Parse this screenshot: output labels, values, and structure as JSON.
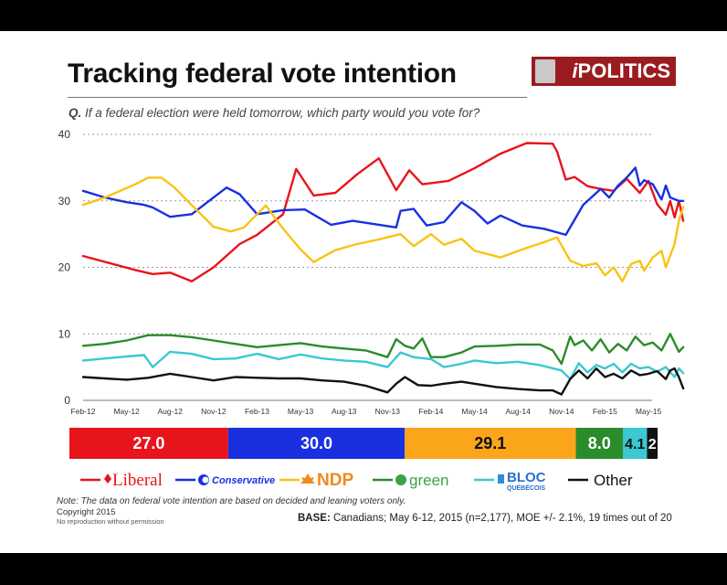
{
  "title": "Tracking federal vote intention",
  "logo": {
    "prefix": "i",
    "text": "POLITICS"
  },
  "question": {
    "label": "Q.",
    "text": "If a federal election were held tomorrow, which party would you vote for?"
  },
  "note": "Note: The data on federal vote intention are based on decided and leaning voters only.",
  "copyright": "Copyright 2015",
  "no_reproduction": "No reproduction without permission",
  "base": {
    "label": "BASE:",
    "text": "Canadians; May 6-12, 2015 (n=2,177), MOE +/- 2.1%, 19 times out of 20"
  },
  "colors": {
    "liberal": "#e8141b",
    "conservative": "#1a2fe0",
    "ndp": "#f9c312",
    "green": "#2a8c2a",
    "bloc": "#3ac8d2",
    "other": "#111111",
    "bar_ndp": "#fba61a"
  },
  "chart_data": {
    "type": "line",
    "x_labels": [
      "Feb-12",
      "May-12",
      "Aug-12",
      "Nov-12",
      "Feb-13",
      "May-13",
      "Aug-13",
      "Nov-13",
      "Feb-14",
      "May-14",
      "Aug-14",
      "Nov-14",
      "Feb-15",
      "May-15"
    ],
    "ylim": [
      0,
      40
    ],
    "yticks": [
      0,
      10,
      20,
      30,
      40
    ],
    "grid": true,
    "legend_position": "bottom",
    "series": [
      {
        "name": "Liberal",
        "key": "liberal",
        "x": [
          0,
          1.2,
          1.6,
          2.0,
          2.5,
          3.0,
          3.6,
          4.0,
          4.6,
          4.9,
          5.3,
          5.8,
          6.3,
          6.8,
          7.2,
          7.5,
          7.8,
          8.4,
          9.0,
          9.6,
          10.2,
          10.8,
          10.9,
          11.1,
          11.3,
          11.6,
          11.9,
          12.2,
          12.5,
          12.8,
          13.0,
          13.2,
          13.4,
          13.5,
          13.6,
          13.7,
          13.8
        ],
        "y": [
          21.7,
          19.6,
          19.0,
          19.2,
          17.9,
          20.0,
          23.5,
          24.9,
          28.0,
          34.8,
          30.8,
          31.2,
          34.0,
          36.4,
          31.6,
          34.6,
          32.5,
          33.0,
          34.9,
          37.1,
          38.7,
          38.6,
          37.4,
          33.2,
          33.6,
          32.2,
          31.8,
          31.5,
          33.3,
          31.2,
          33.0,
          29.5,
          27.9,
          30.0,
          27.5,
          30.0,
          27.0
        ]
      },
      {
        "name": "Conservative",
        "key": "conservative",
        "x": [
          0,
          0.5,
          1.0,
          1.4,
          1.6,
          2.0,
          2.5,
          3.0,
          3.3,
          3.6,
          4.0,
          4.6,
          5.1,
          5.7,
          6.2,
          6.7,
          7.2,
          7.3,
          7.6,
          7.9,
          8.3,
          8.7,
          9.0,
          9.3,
          9.6,
          10.1,
          10.6,
          11.1,
          11.5,
          11.9,
          12.1,
          12.3,
          12.5,
          12.7,
          12.8,
          12.9,
          13.1,
          13.3,
          13.4,
          13.5,
          13.7,
          13.8
        ],
        "y": [
          31.5,
          30.5,
          29.8,
          29.4,
          29.0,
          27.6,
          28.0,
          30.5,
          32.0,
          31.0,
          28.0,
          28.6,
          28.7,
          26.4,
          27.0,
          26.5,
          26.0,
          28.5,
          28.8,
          26.3,
          26.8,
          29.8,
          28.5,
          26.6,
          27.8,
          26.3,
          25.8,
          24.9,
          29.4,
          31.8,
          30.5,
          32.3,
          33.5,
          35.0,
          32.3,
          33.1,
          32.5,
          30.2,
          32.3,
          30.5,
          30.0,
          30.0
        ]
      },
      {
        "name": "NDP",
        "key": "ndp",
        "x": [
          0,
          0.5,
          1.2,
          1.5,
          1.8,
          2.1,
          2.4,
          3.0,
          3.4,
          3.7,
          4.2,
          4.6,
          5.0,
          5.3,
          5.8,
          6.3,
          6.8,
          7.3,
          7.6,
          8.0,
          8.3,
          8.7,
          9.0,
          9.6,
          10.1,
          10.6,
          10.9,
          11.2,
          11.5,
          11.8,
          12.0,
          12.2,
          12.4,
          12.6,
          12.8,
          12.9,
          13.1,
          13.3,
          13.4,
          13.6,
          13.7,
          13.8
        ],
        "y": [
          29.4,
          30.5,
          32.5,
          33.5,
          33.5,
          32.0,
          30.0,
          26.1,
          25.4,
          26.0,
          29.3,
          25.8,
          22.7,
          20.8,
          22.6,
          23.5,
          24.2,
          25.0,
          23.2,
          25.0,
          23.4,
          24.3,
          22.5,
          21.5,
          22.7,
          23.8,
          24.5,
          21.0,
          20.2,
          20.6,
          18.8,
          20.0,
          17.9,
          20.5,
          21.0,
          19.5,
          21.5,
          22.5,
          20.0,
          23.5,
          27.0,
          29.1
        ]
      },
      {
        "name": "Green",
        "key": "green",
        "x": [
          0,
          0.5,
          1.0,
          1.5,
          2.0,
          2.5,
          3.0,
          3.5,
          4.0,
          4.5,
          5.0,
          5.5,
          6.0,
          6.5,
          7.0,
          7.2,
          7.4,
          7.6,
          7.8,
          8.0,
          8.3,
          8.7,
          9.0,
          9.5,
          10.0,
          10.5,
          10.8,
          11.0,
          11.2,
          11.3,
          11.5,
          11.7,
          11.9,
          12.1,
          12.3,
          12.5,
          12.7,
          12.9,
          13.1,
          13.3,
          13.5,
          13.7,
          13.8
        ],
        "y": [
          8.2,
          8.5,
          9.0,
          9.8,
          9.8,
          9.5,
          9.0,
          8.5,
          8.0,
          8.3,
          8.6,
          8.1,
          7.8,
          7.5,
          6.5,
          9.2,
          8.2,
          7.8,
          9.3,
          6.5,
          6.5,
          7.2,
          8.1,
          8.2,
          8.4,
          8.4,
          7.5,
          5.5,
          9.6,
          8.3,
          9.0,
          7.5,
          9.2,
          7.2,
          8.5,
          7.5,
          9.6,
          8.3,
          8.7,
          7.5,
          10.0,
          7.3,
          8.0
        ]
      },
      {
        "name": "Bloc",
        "key": "bloc",
        "x": [
          0,
          0.5,
          1.0,
          1.4,
          1.6,
          2.0,
          2.5,
          3.0,
          3.5,
          4.0,
          4.5,
          5.0,
          5.5,
          6.0,
          6.5,
          7.0,
          7.3,
          7.6,
          8.0,
          8.3,
          8.7,
          9.0,
          9.5,
          10.0,
          10.5,
          11.0,
          11.2,
          11.4,
          11.6,
          11.8,
          12.0,
          12.2,
          12.4,
          12.6,
          12.8,
          13.0,
          13.2,
          13.4,
          13.6,
          13.7,
          13.8
        ],
        "y": [
          6.0,
          6.3,
          6.6,
          6.8,
          5.0,
          7.3,
          7.0,
          6.2,
          6.3,
          7.0,
          6.2,
          6.9,
          6.3,
          6.0,
          5.8,
          5.0,
          7.2,
          6.5,
          6.2,
          5.0,
          5.5,
          6.0,
          5.6,
          5.8,
          5.3,
          4.5,
          3.2,
          5.6,
          4.2,
          5.3,
          4.8,
          5.5,
          4.2,
          5.5,
          4.8,
          5.0,
          4.3,
          5.0,
          3.5,
          4.8,
          4.1
        ]
      },
      {
        "name": "Other",
        "key": "other",
        "x": [
          0,
          0.5,
          1.0,
          1.5,
          2.0,
          2.5,
          3.0,
          3.5,
          4.0,
          4.5,
          5.0,
          5.5,
          6.0,
          6.5,
          7.0,
          7.2,
          7.4,
          7.7,
          8.0,
          8.3,
          8.7,
          9.0,
          9.5,
          10.0,
          10.5,
          10.8,
          11.0,
          11.2,
          11.4,
          11.6,
          11.8,
          12.0,
          12.2,
          12.4,
          12.6,
          12.8,
          13.0,
          13.2,
          13.4,
          13.5,
          13.6,
          13.7,
          13.8
        ],
        "y": [
          3.5,
          3.3,
          3.1,
          3.4,
          4.0,
          3.5,
          3.0,
          3.5,
          3.4,
          3.3,
          3.3,
          3.0,
          2.8,
          2.2,
          1.2,
          2.5,
          3.5,
          2.3,
          2.2,
          2.5,
          2.8,
          2.5,
          2.0,
          1.7,
          1.5,
          1.5,
          0.9,
          3.2,
          4.5,
          3.3,
          4.8,
          3.5,
          4.0,
          3.3,
          4.5,
          3.8,
          4.0,
          4.4,
          3.2,
          4.5,
          4.8,
          3.5,
          1.8
        ]
      }
    ],
    "share_bar": [
      {
        "key": "liberal",
        "label": "27.0",
        "value": 27.0
      },
      {
        "key": "conservative",
        "label": "30.0",
        "value": 30.0
      },
      {
        "key": "ndp",
        "label": "29.1",
        "value": 29.1
      },
      {
        "key": "green",
        "label": "8.0",
        "value": 8.0
      },
      {
        "key": "bloc",
        "label": "4.1",
        "value": 4.1
      },
      {
        "key": "other",
        "label": "2",
        "value": 1.8
      }
    ],
    "legend": [
      {
        "key": "liberal",
        "label": "Liberal"
      },
      {
        "key": "conservative",
        "label": "Conservative"
      },
      {
        "key": "ndp",
        "label": "NDP"
      },
      {
        "key": "green",
        "label": "green"
      },
      {
        "key": "bloc",
        "label": "BLOC"
      },
      {
        "key": "other",
        "label": "Other"
      }
    ],
    "legend_sublabels": {
      "bloc": "QUÉBÉCOIS"
    }
  }
}
